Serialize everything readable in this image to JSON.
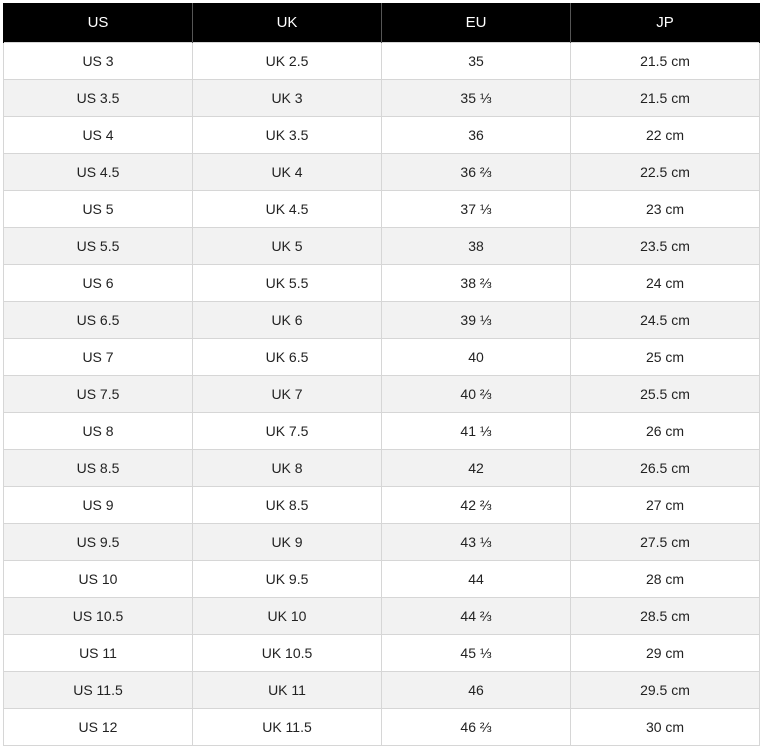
{
  "table": {
    "headers": [
      "US",
      "UK",
      "EU",
      "JP"
    ],
    "rows": [
      [
        "US 3",
        "UK 2.5",
        "35",
        "21.5 cm"
      ],
      [
        "US 3.5",
        "UK 3",
        "35 ⅓",
        "21.5 cm"
      ],
      [
        "US 4",
        "UK 3.5",
        "36",
        "22 cm"
      ],
      [
        "US 4.5",
        "UK 4",
        "36 ⅔",
        "22.5 cm"
      ],
      [
        "US 5",
        "UK 4.5",
        "37 ⅓",
        "23 cm"
      ],
      [
        "US 5.5",
        "UK 5",
        "38",
        "23.5 cm"
      ],
      [
        "US 6",
        "UK 5.5",
        "38 ⅔",
        "24 cm"
      ],
      [
        "US 6.5",
        "UK 6",
        "39 ⅓",
        "24.5 cm"
      ],
      [
        "US 7",
        "UK 6.5",
        "40",
        "25 cm"
      ],
      [
        "US 7.5",
        "UK 7",
        "40 ⅔",
        "25.5 cm"
      ],
      [
        "US 8",
        "UK 7.5",
        "41 ⅓",
        "26 cm"
      ],
      [
        "US 8.5",
        "UK 8",
        "42",
        "26.5 cm"
      ],
      [
        "US 9",
        "UK 8.5",
        "42 ⅔",
        "27 cm"
      ],
      [
        "US 9.5",
        "UK 9",
        "43 ⅓",
        "27.5 cm"
      ],
      [
        "US 10",
        "UK 9.5",
        "44",
        "28 cm"
      ],
      [
        "US 10.5",
        "UK 10",
        "44 ⅔",
        "28.5 cm"
      ],
      [
        "US 11",
        "UK 10.5",
        "45 ⅓",
        "29 cm"
      ],
      [
        "US 11.5",
        "UK 11",
        "46",
        "29.5 cm"
      ],
      [
        "US 12",
        "UK 11.5",
        "46 ⅔",
        "30 cm"
      ]
    ],
    "colors": {
      "header_bg": "#000000",
      "header_text": "#ffffff",
      "row_alt_bg": "#f2f2f2",
      "row_bg": "#ffffff",
      "border": "#d6d6d6"
    }
  }
}
